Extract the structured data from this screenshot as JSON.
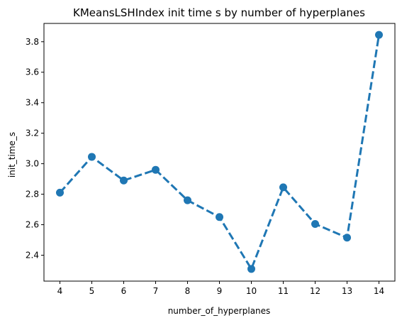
{
  "chart_data": {
    "type": "line",
    "title": "KMeansLSHIndex init time s by number of hyperplanes",
    "xlabel": "number_of_hyperplanes",
    "ylabel": "init_time_s",
    "categories": [
      "4",
      "5",
      "6",
      "7",
      "8",
      "9",
      "10",
      "11",
      "12",
      "13",
      "14"
    ],
    "values": [
      2.81,
      3.045,
      2.89,
      2.96,
      2.76,
      2.65,
      2.31,
      2.845,
      2.605,
      2.515,
      3.845
    ],
    "yticks": [
      "2.4",
      "2.6",
      "2.8",
      "3.0",
      "3.2",
      "3.4",
      "3.6",
      "3.8"
    ],
    "ylim": [
      2.23,
      3.92
    ],
    "line_style": "dashed",
    "marker": "circle",
    "color": "#1f77b4",
    "grid": false
  }
}
